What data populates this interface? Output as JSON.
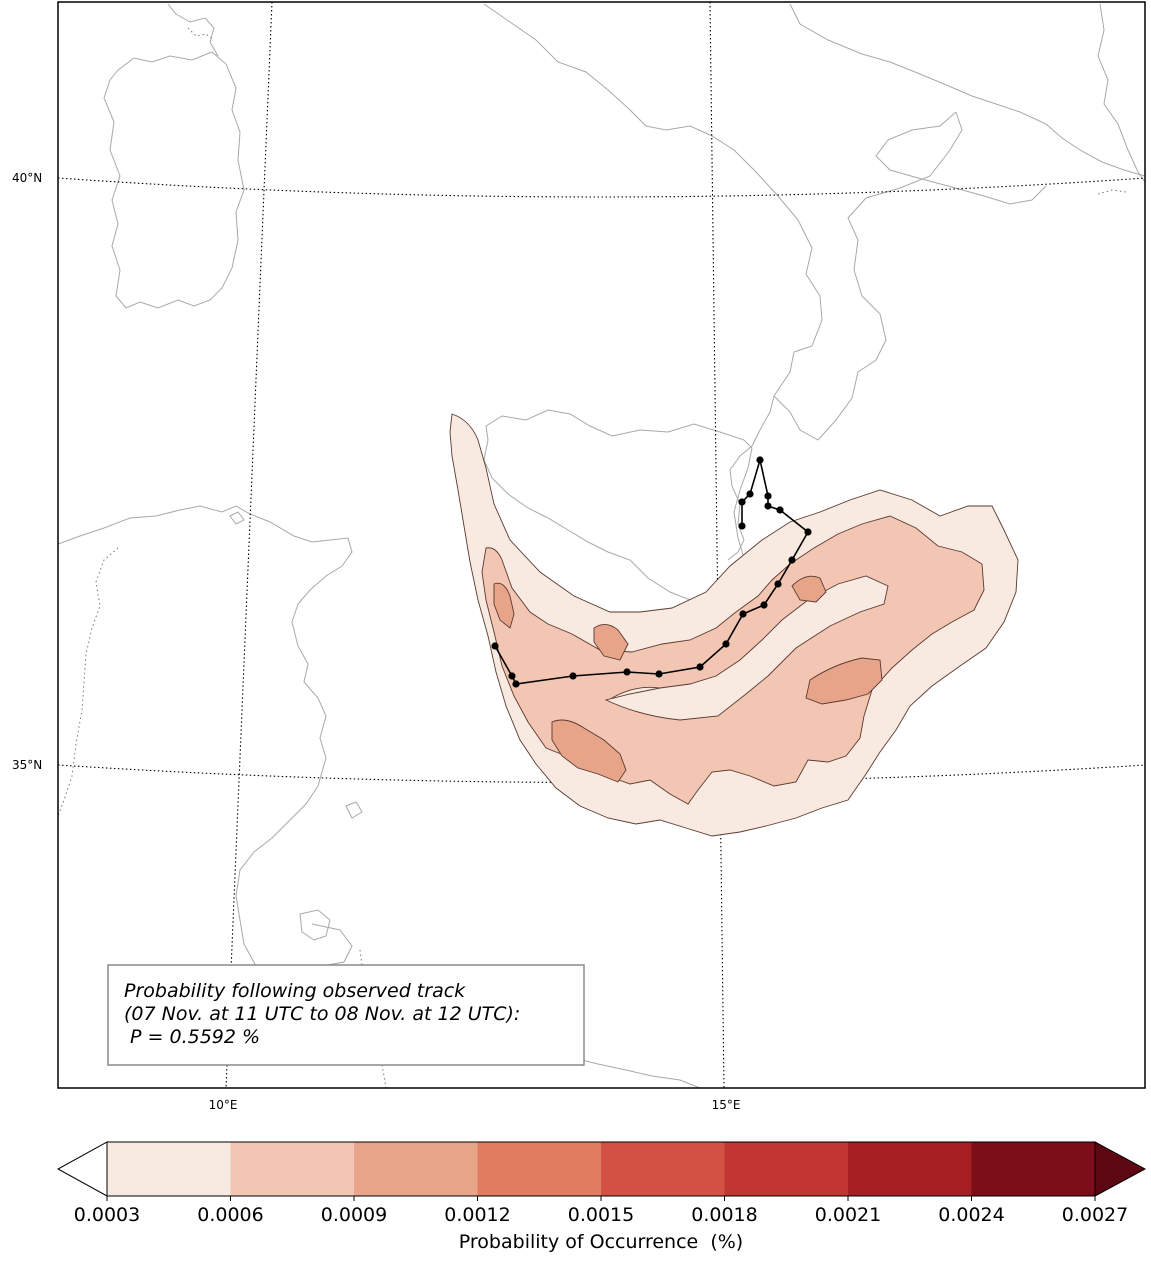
{
  "map": {
    "lat_labels": [
      "40°N",
      "35°N"
    ],
    "lon_labels": [
      "10°E",
      "15°E"
    ]
  },
  "annotation": {
    "line1": "Probability following observed track",
    "line2": "(07 Nov. at 11 UTC to 08 Nov. at 12 UTC):",
    "line3": " P = 0.5592 %"
  },
  "colorbar": {
    "label": "Probability of Occurrence  (%)",
    "ticks": [
      "0.0003",
      "0.0006",
      "0.0009",
      "0.0012",
      "0.0015",
      "0.0018",
      "0.0021",
      "0.0024",
      "0.0027"
    ],
    "colors": [
      "#f8e9e1",
      "#f2c6b2",
      "#e8a488",
      "#e07c5f",
      "#d45243",
      "#c13630",
      "#a41e22",
      "#7c0e1a"
    ],
    "under_color": "#ffffff",
    "over_color": "#5c0712"
  },
  "track": {
    "marker_color": "#000000",
    "line_color": "#000000"
  },
  "contour_colors": [
    "#f8e9e1",
    "#f2c6b2",
    "#e8a488"
  ]
}
